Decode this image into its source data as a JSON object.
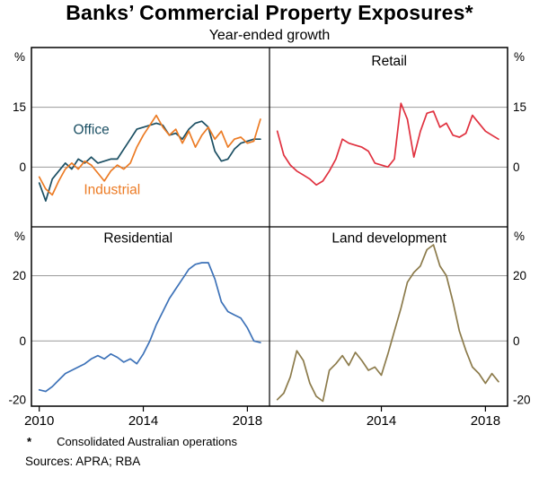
{
  "page": {
    "title": "Banks’ Commercial Property Exposures*",
    "subtitle": "Year-ended growth",
    "footnote_marker": "*",
    "footnote": "Consolidated Australian operations",
    "sources": "Sources: APRA; RBA"
  },
  "axes": {
    "unit": "%",
    "x_start": 2010.0,
    "x_step": 0.25,
    "xlim": [
      2009.7,
      2018.85
    ]
  },
  "chart_data": [
    {
      "type": "line",
      "panel": "office-industrial",
      "row": 0,
      "col": 0,
      "ylim": [
        -15,
        30
      ],
      "yticks": [
        15,
        0
      ],
      "xticks": [],
      "series": [
        {
          "name": "Office",
          "color": "#1b4f63",
          "values": [
            -4,
            -8.5,
            -3,
            -1,
            1,
            -0.5,
            2,
            1,
            2.5,
            1,
            1.5,
            2,
            2,
            4.5,
            7,
            9.5,
            10,
            10.5,
            11,
            10.5,
            8,
            8.5,
            7,
            9.5,
            11,
            11.5,
            10,
            4,
            1.5,
            2,
            4.5,
            6,
            6.5,
            7,
            7
          ]
        },
        {
          "name": "Industrial",
          "color": "#ec7b24",
          "values": [
            -2.5,
            -5.5,
            -7,
            -3.5,
            -0.5,
            1,
            -0.5,
            1.5,
            0.5,
            -1.5,
            -3.5,
            -1,
            0.5,
            -0.5,
            1,
            5,
            8,
            10.5,
            13,
            10,
            8,
            9.5,
            6,
            9,
            5,
            8,
            10,
            7,
            9,
            5,
            7,
            7.5,
            6,
            6.5,
            12
          ]
        }
      ],
      "annotations": [
        {
          "text": "Office",
          "x": 2012.0,
          "y": 8.3,
          "color": "#1b4f63"
        },
        {
          "text": "Industrial",
          "x": 2012.8,
          "y": -6.8,
          "color": "#ec7b24"
        }
      ]
    },
    {
      "type": "line",
      "panel": "retail",
      "row": 0,
      "col": 1,
      "ylim": [
        -15,
        30
      ],
      "yticks": [
        15,
        0
      ],
      "xticks": [],
      "series": [
        {
          "name": "Retail",
          "color": "#e0313f",
          "values": [
            9,
            3,
            0.5,
            -1,
            -2,
            -3,
            -4.5,
            -3.5,
            -1,
            2,
            7,
            6,
            5.5,
            5,
            4,
            1,
            0.5,
            0,
            2,
            16,
            12,
            2.5,
            9,
            13.5,
            14,
            10,
            11,
            8,
            7.5,
            8.5,
            13,
            11,
            9,
            8,
            7
          ]
        }
      ],
      "annotations": [
        {
          "text": "Retail",
          "x": 2014.3,
          "y": 25.5,
          "color": "#000000"
        }
      ]
    },
    {
      "type": "line",
      "panel": "residential",
      "row": 1,
      "col": 0,
      "ylim": [
        -20,
        35
      ],
      "yticks": [
        20,
        0,
        -20
      ],
      "xticks": [
        2010,
        2014,
        2018
      ],
      "series": [
        {
          "name": "Residential",
          "color": "#3d72b8",
          "values": [
            -15,
            -15.5,
            -14,
            -12,
            -10,
            -9,
            -8,
            -7,
            -5.5,
            -4.5,
            -5.5,
            -4,
            -5,
            -6.5,
            -5.5,
            -7,
            -4,
            0,
            5,
            9,
            13,
            16,
            19,
            22,
            23.5,
            24,
            24,
            19,
            12,
            9,
            8,
            7,
            4,
            0,
            -0.5
          ]
        }
      ],
      "annotations": [
        {
          "text": "Residential",
          "x": 2013.8,
          "y": 30.2,
          "color": "#000000"
        }
      ]
    },
    {
      "type": "line",
      "panel": "land-development",
      "row": 1,
      "col": 1,
      "ylim": [
        -20,
        35
      ],
      "yticks": [
        20,
        0,
        -20
      ],
      "xticks": [
        2014,
        2018
      ],
      "series": [
        {
          "name": "Land development",
          "color": "#8c7b4b",
          "values": [
            -18,
            -16,
            -11,
            -3,
            -6,
            -13,
            -17,
            -18.5,
            -9,
            -7,
            -4.5,
            -7.5,
            -3.5,
            -6,
            -9,
            -8,
            -10.5,
            -4,
            3,
            10,
            18,
            21,
            23,
            28,
            29.5,
            23,
            20,
            12,
            3,
            -3,
            -8,
            -10,
            -13,
            -10,
            -12.5
          ]
        }
      ],
      "annotations": [
        {
          "text": "Land development",
          "x": 2014.3,
          "y": 30.2,
          "color": "#000000"
        }
      ]
    }
  ]
}
